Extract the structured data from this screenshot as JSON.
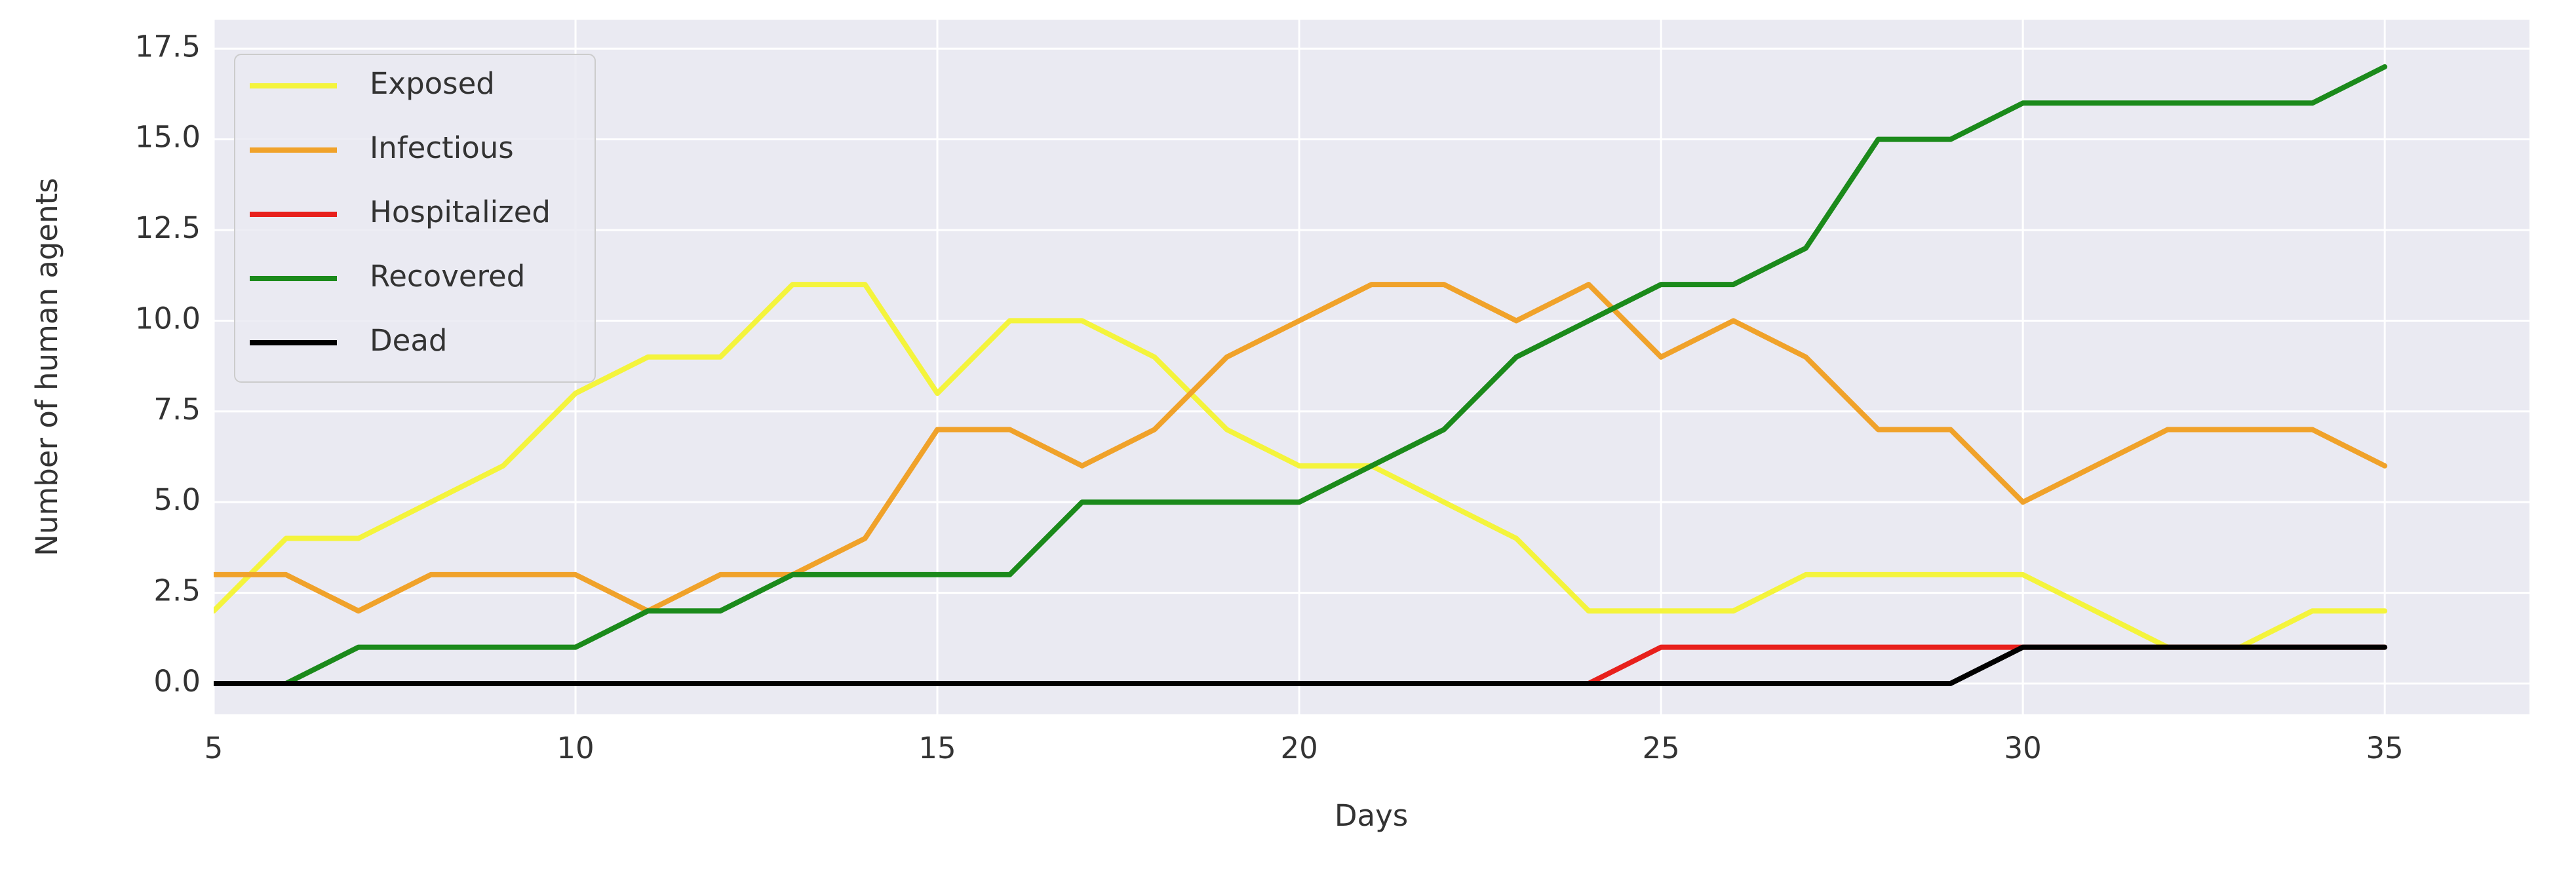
{
  "chart_data": {
    "type": "line",
    "xlabel": "Days",
    "ylabel": "Number of human agents",
    "x": [
      5,
      6,
      7,
      8,
      9,
      10,
      11,
      12,
      13,
      14,
      15,
      16,
      17,
      18,
      19,
      20,
      21,
      22,
      23,
      24,
      25,
      26,
      27,
      28,
      29,
      30,
      31,
      32,
      33,
      34,
      35
    ],
    "series": [
      {
        "name": "Exposed",
        "color": "#f4f43c",
        "values": [
          2,
          4,
          4,
          5,
          6,
          8,
          9,
          9,
          11,
          11,
          8,
          10,
          10,
          9,
          7,
          6,
          6,
          5,
          4,
          2,
          2,
          2,
          3,
          3,
          3,
          3,
          2,
          1,
          1,
          2,
          2
        ]
      },
      {
        "name": "Infectious",
        "color": "#f0a22a",
        "values": [
          3,
          3,
          2,
          3,
          3,
          3,
          2,
          3,
          3,
          4,
          7,
          7,
          6,
          7,
          9,
          10,
          11,
          11,
          10,
          11,
          9,
          10,
          9,
          7,
          7,
          5,
          6,
          7,
          7,
          7,
          6
        ]
      },
      {
        "name": "Hospitalized",
        "color": "#e8201c",
        "values": [
          0,
          0,
          0,
          0,
          0,
          0,
          0,
          0,
          0,
          0,
          0,
          0,
          0,
          0,
          0,
          0,
          0,
          0,
          0,
          0,
          1,
          1,
          1,
          1,
          1,
          1,
          1,
          1,
          1,
          1,
          1
        ]
      },
      {
        "name": "Recovered",
        "color": "#1b8a1b",
        "values": [
          0,
          0,
          1,
          1,
          1,
          1,
          2,
          2,
          3,
          3,
          3,
          3,
          5,
          5,
          5,
          5,
          6,
          7,
          9,
          10,
          11,
          11,
          12,
          15,
          15,
          16,
          16,
          16,
          16,
          16,
          17
        ]
      },
      {
        "name": "Dead",
        "color": "#000000",
        "values": [
          0,
          0,
          0,
          0,
          0,
          0,
          0,
          0,
          0,
          0,
          0,
          0,
          0,
          0,
          0,
          0,
          0,
          0,
          0,
          0,
          0,
          0,
          0,
          0,
          0,
          1,
          1,
          1,
          1,
          1,
          1
        ]
      }
    ],
    "xlim": [
      5,
      37
    ],
    "xticks": [
      5,
      10,
      15,
      20,
      25,
      30,
      35
    ],
    "ylim": [
      -0.85,
      18.3
    ],
    "yticks": [
      {
        "value": 0,
        "label": "0.0"
      },
      2.5,
      {
        "value": 5,
        "label": "5.0"
      },
      7.5,
      {
        "value": 10,
        "label": "10.0"
      },
      12.5,
      {
        "value": 15,
        "label": "15.0"
      },
      17.5
    ],
    "grid": true,
    "legend": "upper left"
  }
}
